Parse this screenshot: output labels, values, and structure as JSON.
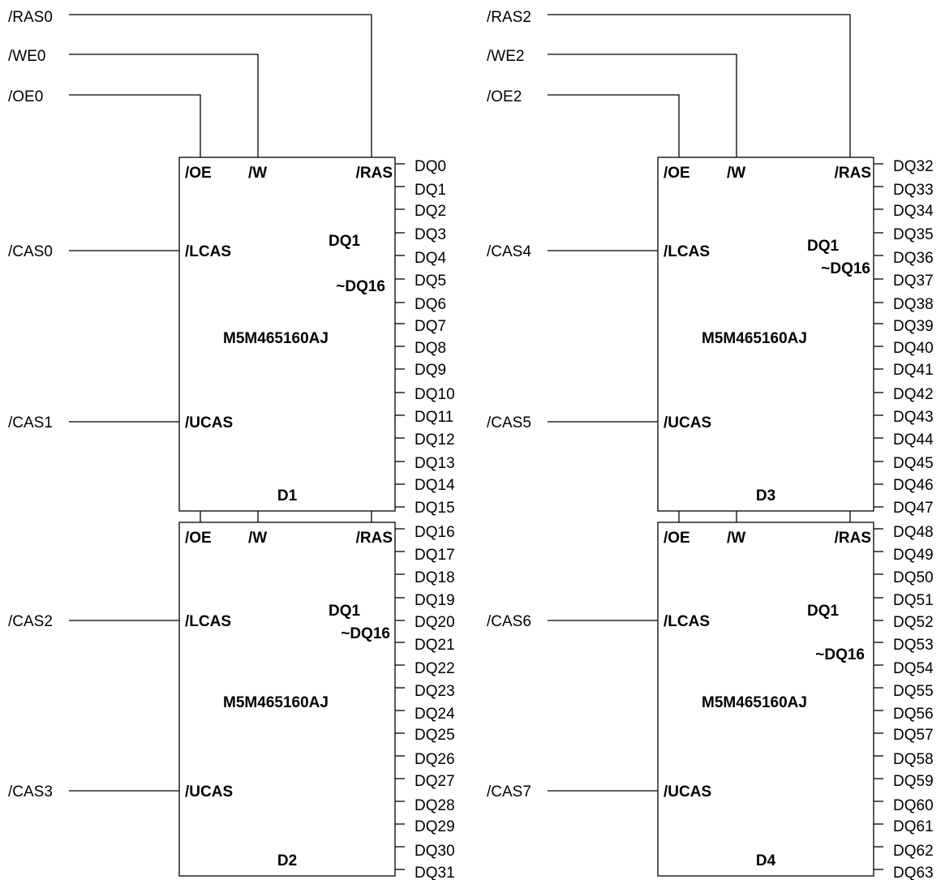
{
  "groups": [
    {
      "ras": "/RAS0",
      "we": "/WE0",
      "oe": "/OE0",
      "chips": [
        {
          "designator": "D1",
          "part": "M5M465160AJ",
          "pin_oe": "/OE",
          "pin_w": "/W",
          "pin_ras": "/RAS",
          "pin_lcas": "/LCAS",
          "pin_ucas": "/UCAS",
          "dq_line1": "DQ1",
          "dq_line2": "~DQ16",
          "cas_lower": "/CAS0",
          "cas_upper": "/CAS1",
          "dq": [
            "DQ0",
            "DQ1",
            "DQ2",
            "DQ3",
            "DQ4",
            "DQ5",
            "DQ6",
            "DQ7",
            "DQ8",
            "DQ9",
            "DQ10",
            "DQ11",
            "DQ12",
            "DQ13",
            "DQ14",
            "DQ15"
          ]
        },
        {
          "designator": "D2",
          "part": "M5M465160AJ",
          "pin_oe": "/OE",
          "pin_w": "/W",
          "pin_ras": "/RAS",
          "pin_lcas": "/LCAS",
          "pin_ucas": "/UCAS",
          "dq_line1": "DQ1",
          "dq_line2": "~DQ16",
          "cas_lower": "/CAS2",
          "cas_upper": "/CAS3",
          "dq": [
            "DQ16",
            "DQ17",
            "DQ18",
            "DQ19",
            "DQ20",
            "DQ21",
            "DQ22",
            "DQ23",
            "DQ24",
            "DQ25",
            "DQ26",
            "DQ27",
            "DQ28",
            "DQ29",
            "DQ30",
            "DQ31"
          ]
        }
      ]
    },
    {
      "ras": "/RAS2",
      "we": "/WE2",
      "oe": "/OE2",
      "chips": [
        {
          "designator": "D3",
          "part": "M5M465160AJ",
          "pin_oe": "/OE",
          "pin_w": "/W",
          "pin_ras": "/RAS",
          "pin_lcas": "/LCAS",
          "pin_ucas": "/UCAS",
          "dq_line1": "DQ1",
          "dq_line2": "~DQ16",
          "cas_lower": "/CAS4",
          "cas_upper": "/CAS5",
          "dq": [
            "DQ32",
            "DQ33",
            "DQ34",
            "DQ35",
            "DQ36",
            "DQ37",
            "DQ38",
            "DQ39",
            "DQ40",
            "DQ41",
            "DQ42",
            "DQ43",
            "DQ44",
            "DQ45",
            "DQ46",
            "DQ47"
          ]
        },
        {
          "designator": "D4",
          "part": "M5M465160AJ",
          "pin_oe": "/OE",
          "pin_w": "/W",
          "pin_ras": "/RAS",
          "pin_lcas": "/LCAS",
          "pin_ucas": "/UCAS",
          "dq_line1": "DQ1",
          "dq_line2": "~DQ16",
          "cas_lower": "/CAS6",
          "cas_upper": "/CAS7",
          "dq": [
            "DQ48",
            "DQ49",
            "DQ50",
            "DQ51",
            "DQ52",
            "DQ53",
            "DQ54",
            "DQ55",
            "DQ56",
            "DQ57",
            "DQ58",
            "DQ59",
            "DQ60",
            "DQ61",
            "DQ62",
            "DQ63"
          ]
        }
      ]
    }
  ]
}
